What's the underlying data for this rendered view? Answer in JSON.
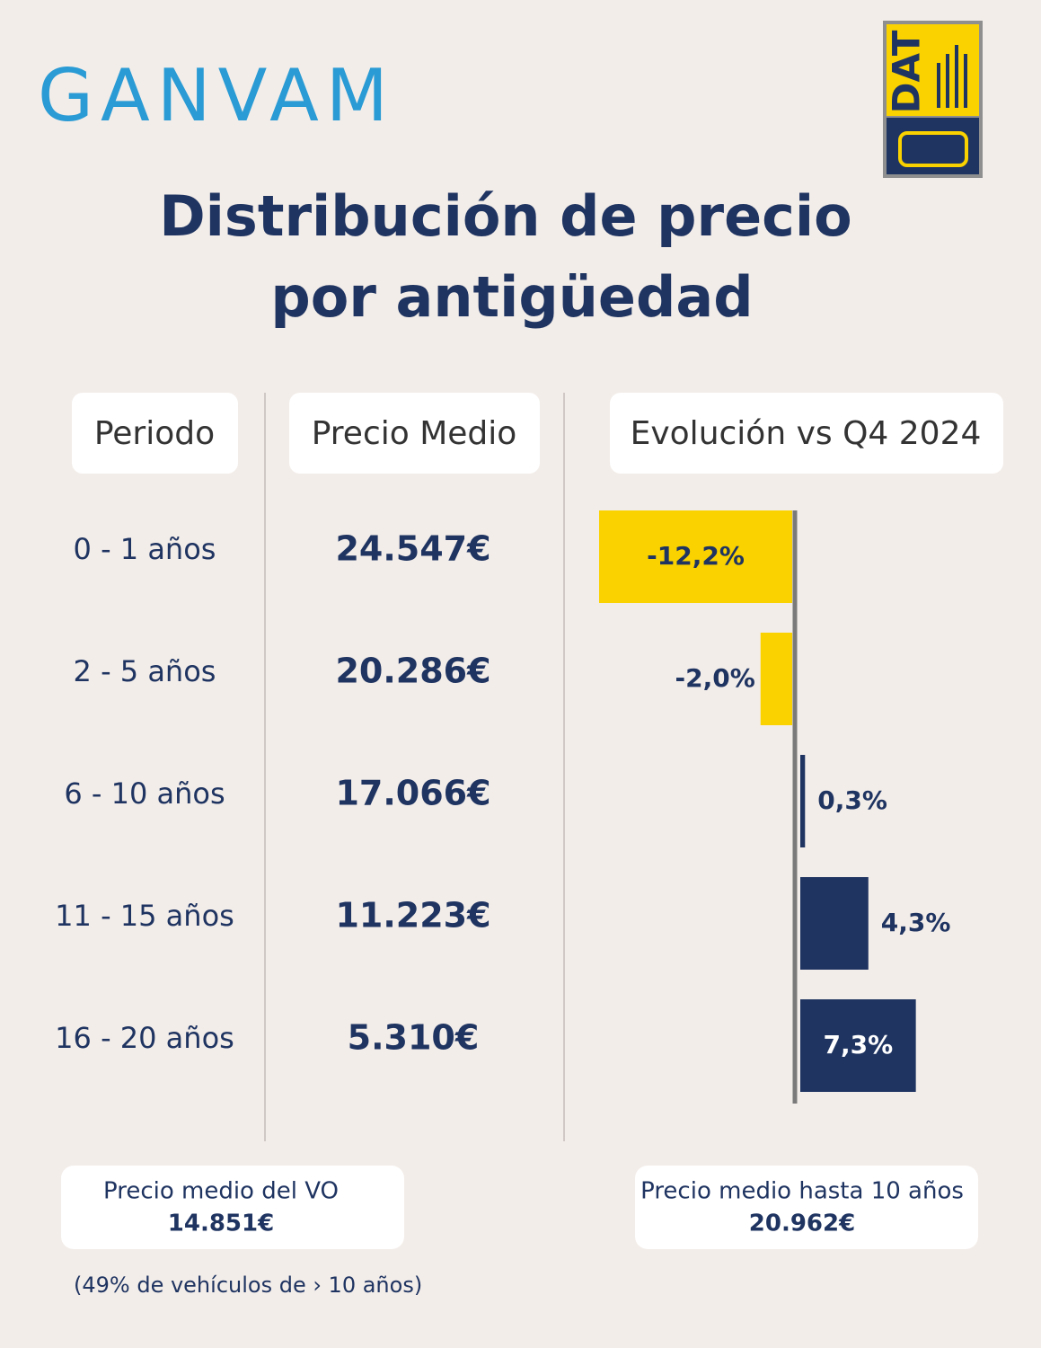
{
  "logos": {
    "ganvam": "GANVAM",
    "dat": "DAT"
  },
  "title_lines": [
    "Distribución de precio",
    "por antigüedad"
  ],
  "table": {
    "headers": [
      "Periodo",
      "Precio Medio",
      "Evolución vs Q4 2024"
    ],
    "prices": [
      "24.547€",
      "20.286€",
      "17.066€",
      "11.223€",
      "5.310€"
    ]
  },
  "chart_data": {
    "type": "bar",
    "orientation": "horizontal",
    "categories": [
      "0 - 1 años",
      "2 - 5 años",
      "6 - 10 años",
      "11 - 15 años",
      "16 - 20 años"
    ],
    "values": [
      -12.2,
      -2.0,
      0.3,
      4.3,
      7.3
    ],
    "value_labels": [
      "-12,2%",
      "-2,0%",
      "0,3%",
      "4,3%",
      "7,3%"
    ],
    "colors": [
      "#fad200",
      "#fad200",
      "#1f3461",
      "#1f3461",
      "#1f3461"
    ]
  },
  "footer": {
    "left": {
      "label": "Precio medio del VO",
      "value": "14.851€"
    },
    "right": {
      "label": "Precio medio hasta 10 años",
      "value": "20.962€"
    },
    "note": "(49% de vehículos de › 10 años)"
  }
}
